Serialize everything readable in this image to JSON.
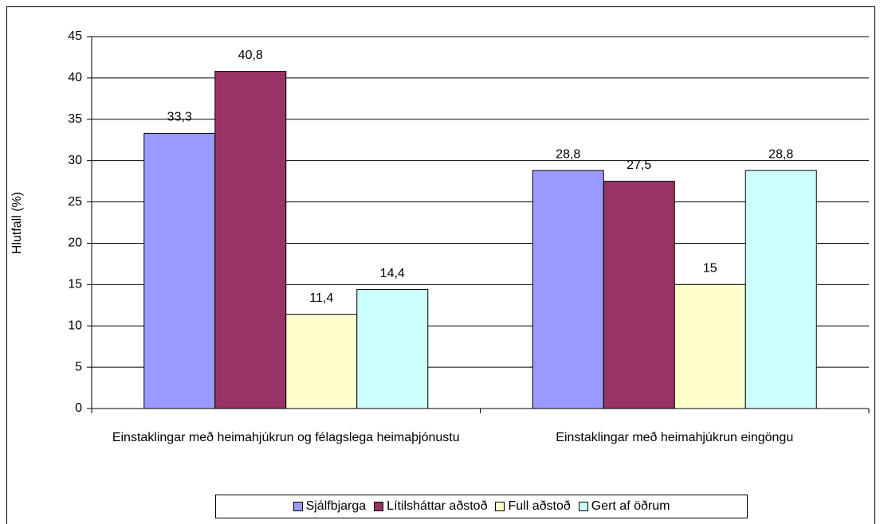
{
  "chart_data": {
    "type": "bar",
    "y_label": "Hlutfall (%)",
    "categories": [
      "Einstaklingar með heimahjúkrun og félagslega heimaþjónustu",
      "Einstaklingar með heimahjúkrun eingöngu"
    ],
    "series": [
      {
        "name": "Sjálfbjarga",
        "color": "#9999ff",
        "values": [
          33.3,
          28.8
        ],
        "value_labels": [
          "33,3",
          "28,8"
        ]
      },
      {
        "name": "Lítilsháttar aðstoð",
        "color": "#993366",
        "values": [
          40.8,
          27.5
        ],
        "value_labels": [
          "40,8",
          "27,5"
        ]
      },
      {
        "name": "Full aðstoð",
        "color": "#ffffcc",
        "values": [
          11.4,
          15
        ],
        "value_labels": [
          "11,4",
          "15"
        ]
      },
      {
        "name": "Gert af öðrum",
        "color": "#ccffff",
        "values": [
          14.4,
          28.8
        ],
        "value_labels": [
          "14,4",
          "28,8"
        ]
      }
    ],
    "ylim": [
      0,
      45
    ],
    "yticks": [
      0,
      5,
      10,
      15,
      20,
      25,
      30,
      35,
      40,
      45
    ],
    "grid": true,
    "legend": "bottom"
  }
}
